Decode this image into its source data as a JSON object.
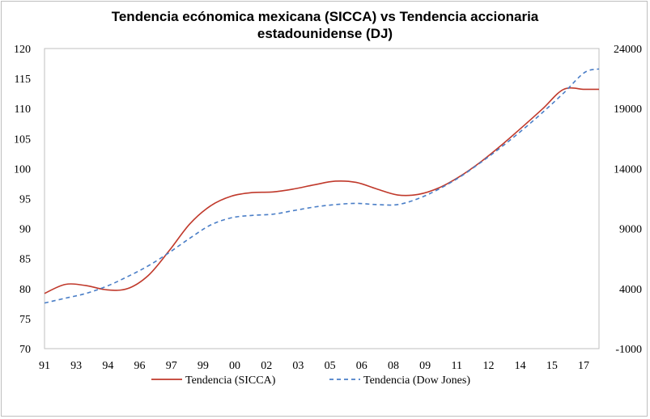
{
  "chart_data": {
    "type": "line",
    "title_line1": "Tendencia ecónomica mexicana (SICCA) vs Tendencia accionaria",
    "title_line2": "estadounidense (DJ)",
    "categories": [
      "91",
      "93",
      "94",
      "96",
      "97",
      "99",
      "00",
      "02",
      "03",
      "05",
      "06",
      "08",
      "09",
      "11",
      "12",
      "14",
      "15",
      "17"
    ],
    "y_left": {
      "min": 70,
      "max": 120,
      "ticks": [
        "70",
        "75",
        "80",
        "85",
        "90",
        "95",
        "100",
        "105",
        "110",
        "115",
        "120"
      ]
    },
    "y_right": {
      "min": -1000,
      "max": 24000,
      "ticks": [
        "-1000",
        "4000",
        "9000",
        "14000",
        "19000",
        "24000"
      ]
    },
    "series": [
      {
        "name": "Tendencia (SICCA)",
        "axis": "left",
        "color": "#c0392b",
        "dash": "",
        "x": [
          1991,
          1992,
          1993,
          1994,
          1995,
          1996,
          1997,
          1998,
          1999,
          2000,
          2001,
          2002,
          2003,
          2004,
          2005,
          2006,
          2007,
          2008,
          2009,
          2010,
          2011,
          2012,
          2013,
          2014,
          2015,
          2016,
          2017,
          2017.7
        ],
        "y": [
          79.2,
          80.7,
          80.5,
          79.8,
          80.0,
          82.2,
          86.3,
          90.8,
          93.8,
          95.4,
          96.0,
          96.1,
          96.6,
          97.3,
          97.9,
          97.7,
          96.6,
          95.6,
          95.7,
          96.8,
          98.7,
          101.1,
          103.9,
          106.9,
          110.0,
          113.2,
          113.2,
          113.2
        ]
      },
      {
        "name": "Tendencia (Dow Jones)",
        "axis": "right",
        "color": "#4a7ec7",
        "dash": "5,4",
        "x": [
          1991,
          1992,
          1993,
          1994,
          1995,
          1996,
          1997,
          1998,
          1999,
          2000,
          2001,
          2002,
          2003,
          2004,
          2005,
          2006,
          2007,
          2008,
          2009,
          2010,
          2011,
          2012,
          2013,
          2014,
          2015,
          2016,
          2017,
          2017.7
        ],
        "y": [
          2800,
          3200,
          3600,
          4200,
          5000,
          5900,
          7000,
          8200,
          9300,
          9900,
          10100,
          10200,
          10500,
          10800,
          11000,
          11100,
          11000,
          11000,
          11500,
          12300,
          13300,
          14500,
          15800,
          17200,
          18700,
          20300,
          22000,
          22300
        ]
      }
    ],
    "legend": {
      "placement": "bottom"
    }
  }
}
